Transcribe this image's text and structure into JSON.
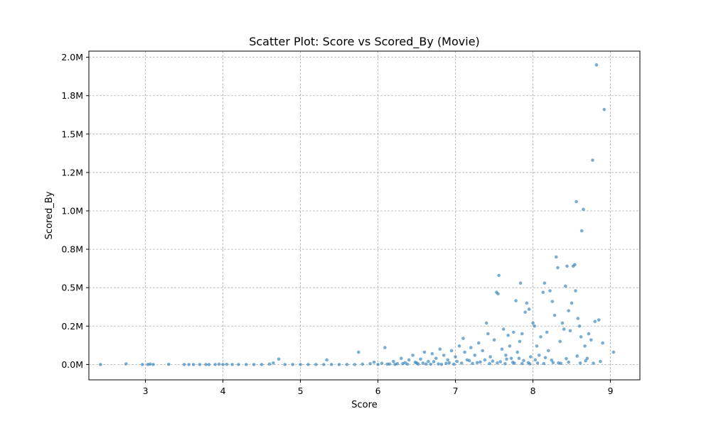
{
  "chart_data": {
    "type": "scatter",
    "title": "Scatter Plot: Score vs Scored_By (Movie)",
    "xlabel": "Score",
    "ylabel": "Scored_By",
    "xlim": [
      2.27,
      9.38
    ],
    "ylim": [
      -100000,
      2040000
    ],
    "x_ticks": [
      3,
      4,
      5,
      6,
      7,
      8,
      9
    ],
    "y_ticks": [
      {
        "value": 0,
        "label": "0.0M"
      },
      {
        "value": 250000,
        "label": "0.2M"
      },
      {
        "value": 500000,
        "label": "0.5M"
      },
      {
        "value": 750000,
        "label": "0.8M"
      },
      {
        "value": 1000000,
        "label": "1.0M"
      },
      {
        "value": 1250000,
        "label": "1.2M"
      },
      {
        "value": 1500000,
        "label": "1.5M"
      },
      {
        "value": 1750000,
        "label": "1.8M"
      },
      {
        "value": 2000000,
        "label": "2.0M"
      }
    ],
    "grid": true,
    "marker_color": "#1f77b4",
    "points": [
      [
        2.42,
        0
      ],
      [
        2.75,
        4000
      ],
      [
        2.96,
        0
      ],
      [
        3.03,
        0
      ],
      [
        3.06,
        3000
      ],
      [
        3.1,
        0
      ],
      [
        3.3,
        1000
      ],
      [
        3.5,
        0
      ],
      [
        3.56,
        0
      ],
      [
        3.62,
        0
      ],
      [
        3.7,
        0
      ],
      [
        3.78,
        0
      ],
      [
        3.82,
        0
      ],
      [
        3.9,
        0
      ],
      [
        3.95,
        2000
      ],
      [
        4.0,
        0
      ],
      [
        4.05,
        1000
      ],
      [
        4.12,
        0
      ],
      [
        4.2,
        0
      ],
      [
        4.3,
        0
      ],
      [
        4.4,
        0
      ],
      [
        4.5,
        0
      ],
      [
        4.6,
        3000
      ],
      [
        4.65,
        10000
      ],
      [
        4.72,
        35000
      ],
      [
        4.8,
        0
      ],
      [
        4.9,
        0
      ],
      [
        5.0,
        0
      ],
      [
        5.1,
        0
      ],
      [
        5.2,
        0
      ],
      [
        5.3,
        0
      ],
      [
        5.34,
        30000
      ],
      [
        5.4,
        0
      ],
      [
        5.5,
        0
      ],
      [
        5.6,
        0
      ],
      [
        5.7,
        0
      ],
      [
        5.75,
        80000
      ],
      [
        5.8,
        2000
      ],
      [
        5.9,
        5000
      ],
      [
        5.95,
        15000
      ],
      [
        6.0,
        0
      ],
      [
        6.05,
        8000
      ],
      [
        6.09,
        110000
      ],
      [
        6.15,
        3000
      ],
      [
        6.2,
        20000
      ],
      [
        6.25,
        5000
      ],
      [
        6.3,
        40000
      ],
      [
        6.35,
        12000
      ],
      [
        6.4,
        30000
      ],
      [
        6.45,
        60000
      ],
      [
        6.5,
        10000
      ],
      [
        6.55,
        35000
      ],
      [
        6.6,
        80000
      ],
      [
        6.65,
        20000
      ],
      [
        6.7,
        70000
      ],
      [
        6.75,
        40000
      ],
      [
        6.8,
        100000
      ],
      [
        6.85,
        60000
      ],
      [
        6.9,
        30000
      ],
      [
        6.95,
        90000
      ],
      [
        7.0,
        50000
      ],
      [
        7.05,
        120000
      ],
      [
        7.1,
        170000
      ],
      [
        7.12,
        80000
      ],
      [
        7.15,
        30000
      ],
      [
        7.2,
        110000
      ],
      [
        7.25,
        60000
      ],
      [
        7.3,
        140000
      ],
      [
        7.35,
        90000
      ],
      [
        7.4,
        270000
      ],
      [
        7.42,
        200000
      ],
      [
        7.45,
        50000
      ],
      [
        7.5,
        160000
      ],
      [
        7.53,
        470000
      ],
      [
        7.55,
        460000
      ],
      [
        7.56,
        580000
      ],
      [
        7.6,
        100000
      ],
      [
        7.62,
        230000
      ],
      [
        7.65,
        60000
      ],
      [
        7.68,
        190000
      ],
      [
        7.7,
        120000
      ],
      [
        7.72,
        40000
      ],
      [
        7.75,
        210000
      ],
      [
        7.78,
        415000
      ],
      [
        7.8,
        80000
      ],
      [
        7.83,
        150000
      ],
      [
        7.84,
        530000
      ],
      [
        7.86,
        200000
      ],
      [
        7.9,
        340000
      ],
      [
        7.92,
        400000
      ],
      [
        7.95,
        360000
      ],
      [
        7.97,
        50000
      ],
      [
        8.0,
        270000
      ],
      [
        8.02,
        250000
      ],
      [
        8.05,
        120000
      ],
      [
        8.1,
        180000
      ],
      [
        8.13,
        470000
      ],
      [
        8.15,
        530000
      ],
      [
        8.18,
        210000
      ],
      [
        8.2,
        90000
      ],
      [
        8.22,
        480000
      ],
      [
        8.25,
        410000
      ],
      [
        8.28,
        320000
      ],
      [
        8.3,
        700000
      ],
      [
        8.32,
        630000
      ],
      [
        8.35,
        150000
      ],
      [
        8.38,
        270000
      ],
      [
        8.4,
        230000
      ],
      [
        8.42,
        510000
      ],
      [
        8.44,
        640000
      ],
      [
        8.46,
        350000
      ],
      [
        8.48,
        220000
      ],
      [
        8.5,
        400000
      ],
      [
        8.52,
        640000
      ],
      [
        8.54,
        650000
      ],
      [
        8.55,
        480000
      ],
      [
        8.56,
        1060000
      ],
      [
        8.58,
        300000
      ],
      [
        8.6,
        250000
      ],
      [
        8.62,
        180000
      ],
      [
        8.63,
        870000
      ],
      [
        8.65,
        1010000
      ],
      [
        8.67,
        120000
      ],
      [
        8.7,
        40000
      ],
      [
        8.72,
        200000
      ],
      [
        8.75,
        160000
      ],
      [
        8.77,
        1330000
      ],
      [
        8.8,
        280000
      ],
      [
        8.82,
        1950000
      ],
      [
        8.85,
        290000
      ],
      [
        8.87,
        20000
      ],
      [
        8.9,
        140000
      ],
      [
        8.92,
        1660000
      ],
      [
        9.04,
        80000
      ],
      [
        6.32,
        6000
      ],
      [
        6.48,
        14000
      ],
      [
        6.58,
        9000
      ],
      [
        6.72,
        18000
      ],
      [
        6.88,
        7000
      ],
      [
        7.02,
        20000
      ],
      [
        7.18,
        25000
      ],
      [
        7.28,
        12000
      ],
      [
        7.38,
        30000
      ],
      [
        7.48,
        22000
      ],
      [
        7.58,
        18000
      ],
      [
        7.66,
        35000
      ],
      [
        7.74,
        14000
      ],
      [
        7.82,
        40000
      ],
      [
        7.88,
        26000
      ],
      [
        7.94,
        12000
      ],
      [
        8.03,
        30000
      ],
      [
        8.08,
        60000
      ],
      [
        8.16,
        45000
      ],
      [
        8.24,
        28000
      ],
      [
        8.33,
        10000
      ],
      [
        8.43,
        38000
      ],
      [
        8.57,
        55000
      ],
      [
        8.68,
        24000
      ],
      [
        8.78,
        8000
      ],
      [
        6.62,
        3000
      ],
      [
        6.78,
        4000
      ],
      [
        6.92,
        11000
      ],
      [
        7.08,
        9000
      ],
      [
        7.22,
        7000
      ],
      [
        7.32,
        16000
      ],
      [
        7.44,
        6000
      ],
      [
        7.54,
        10000
      ],
      [
        7.64,
        5000
      ],
      [
        7.76,
        8000
      ],
      [
        7.86,
        6000
      ],
      [
        7.96,
        4000
      ],
      [
        8.06,
        9000
      ],
      [
        8.14,
        6000
      ],
      [
        8.26,
        12000
      ],
      [
        8.36,
        7000
      ],
      [
        8.46,
        15000
      ],
      [
        8.61,
        9000
      ],
      [
        6.12,
        2000
      ],
      [
        6.22,
        1000
      ],
      [
        6.38,
        2000
      ],
      [
        6.52,
        3000
      ],
      [
        6.68,
        2000
      ],
      [
        6.82,
        1000
      ],
      [
        6.98,
        2000
      ]
    ]
  }
}
